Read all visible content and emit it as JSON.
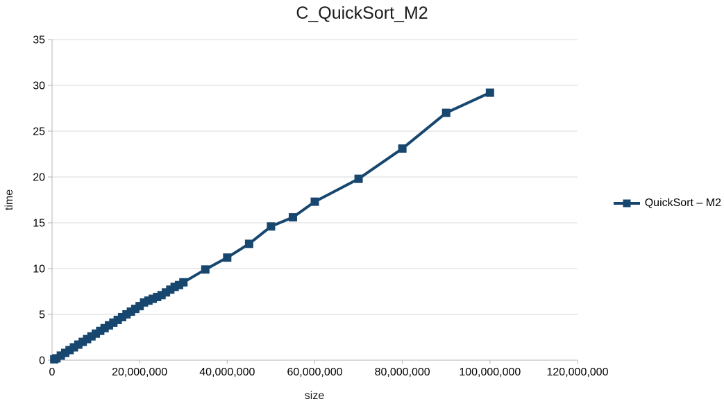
{
  "colors": {
    "series": "#17466f",
    "grid": "#d9d9d9",
    "axis": "#b3b3b3",
    "text": "#1a1a1a",
    "background": "#ffffff"
  },
  "legend": {
    "label": "QuickSort – M2",
    "position": "right"
  },
  "chart_data": {
    "type": "line",
    "title": "C_QuickSort_M2",
    "xlabel": "size",
    "ylabel": "time",
    "xlim": [
      0,
      120000000
    ],
    "ylim": [
      0,
      35
    ],
    "grid": "horizontal",
    "legend_position": "right",
    "marker": "square",
    "x_ticks": {
      "values": [
        0,
        20000000,
        40000000,
        60000000,
        80000000,
        100000000,
        120000000
      ],
      "labels": [
        "0",
        "20,000,000",
        "40,000,000",
        "60,000,000",
        "80,000,000",
        "100,000,000",
        "120,000,000"
      ]
    },
    "y_ticks": {
      "values": [
        0,
        5,
        10,
        15,
        20,
        25,
        30,
        35
      ],
      "labels": [
        "0",
        "5",
        "10",
        "15",
        "20",
        "25",
        "30",
        "35"
      ]
    },
    "series": [
      {
        "name": "QuickSort – M2",
        "color": "#17466f",
        "x": [
          500000,
          1000000,
          2000000,
          3000000,
          4000000,
          5000000,
          6000000,
          7000000,
          8000000,
          9000000,
          10000000,
          11000000,
          12000000,
          13000000,
          14000000,
          15000000,
          16000000,
          17000000,
          18000000,
          19000000,
          20000000,
          21000000,
          22000000,
          23000000,
          24000000,
          25000000,
          26000000,
          27000000,
          28000000,
          29000000,
          30000000,
          35000000,
          40000000,
          45000000,
          50000000,
          55000000,
          60000000,
          70000000,
          80000000,
          90000000,
          100000000
        ],
        "y": [
          0.1,
          0.2,
          0.5,
          0.8,
          1.1,
          1.4,
          1.7,
          2.0,
          2.3,
          2.6,
          2.9,
          3.2,
          3.5,
          3.8,
          4.1,
          4.4,
          4.7,
          5.0,
          5.3,
          5.6,
          5.9,
          6.3,
          6.5,
          6.7,
          6.9,
          7.1,
          7.4,
          7.7,
          8.0,
          8.2,
          8.5,
          9.9,
          11.2,
          12.7,
          14.6,
          15.6,
          17.3,
          19.8,
          23.1,
          27.0,
          29.2
        ]
      }
    ]
  }
}
